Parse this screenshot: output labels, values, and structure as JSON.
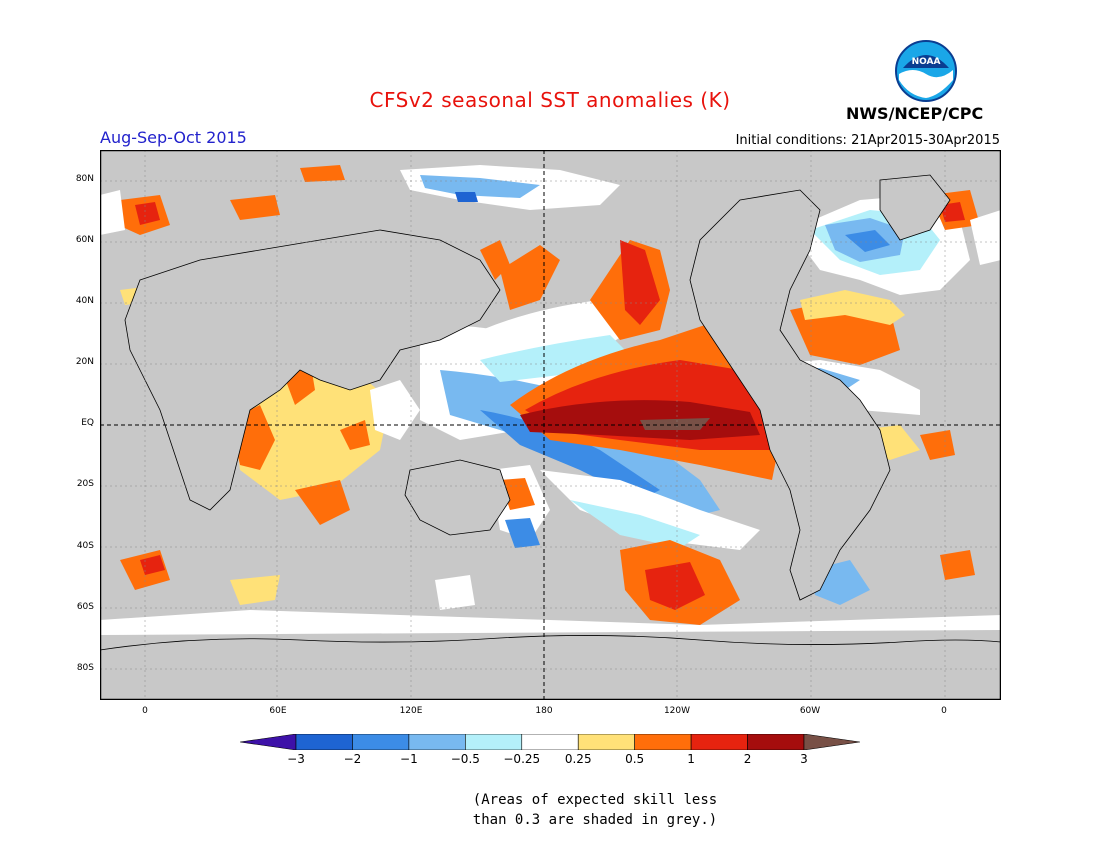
{
  "title": "CFSv2 seasonal SST anomalies (K)",
  "season": "Aug-Sep-Oct 2015",
  "initial_conditions": "Initial conditions: 21Apr2015-30Apr2015",
  "agency": "NWS/NCEP/CPC",
  "logo_text": "NOAA",
  "lat_labels": [
    "80N",
    "60N",
    "40N",
    "20N",
    "EQ",
    "20S",
    "40S",
    "60S",
    "80S"
  ],
  "lon_labels": [
    "0",
    "60E",
    "120E",
    "180",
    "120W",
    "60W",
    "0"
  ],
  "colorbar": {
    "ticks": [
      "−3",
      "−2",
      "−1",
      "−0.5",
      "−0.25",
      "0.25",
      "0.5",
      "1",
      "2",
      "3"
    ],
    "colors": [
      "#3d11a8",
      "#1e64d2",
      "#3c8ce6",
      "#78b9f0",
      "#b4f0fa",
      "#ffffff",
      "#ffe178",
      "#ff6e0a",
      "#e6230f",
      "#a50d0d",
      "#785046"
    ]
  },
  "note_line1": "(Areas of expected skill less",
  "note_line2": "than 0.3 are shaded in grey.)",
  "colors": {
    "skill_grey": "#c8c8c8",
    "title_red": "#e8120c",
    "season_blue": "#2222cc"
  }
}
